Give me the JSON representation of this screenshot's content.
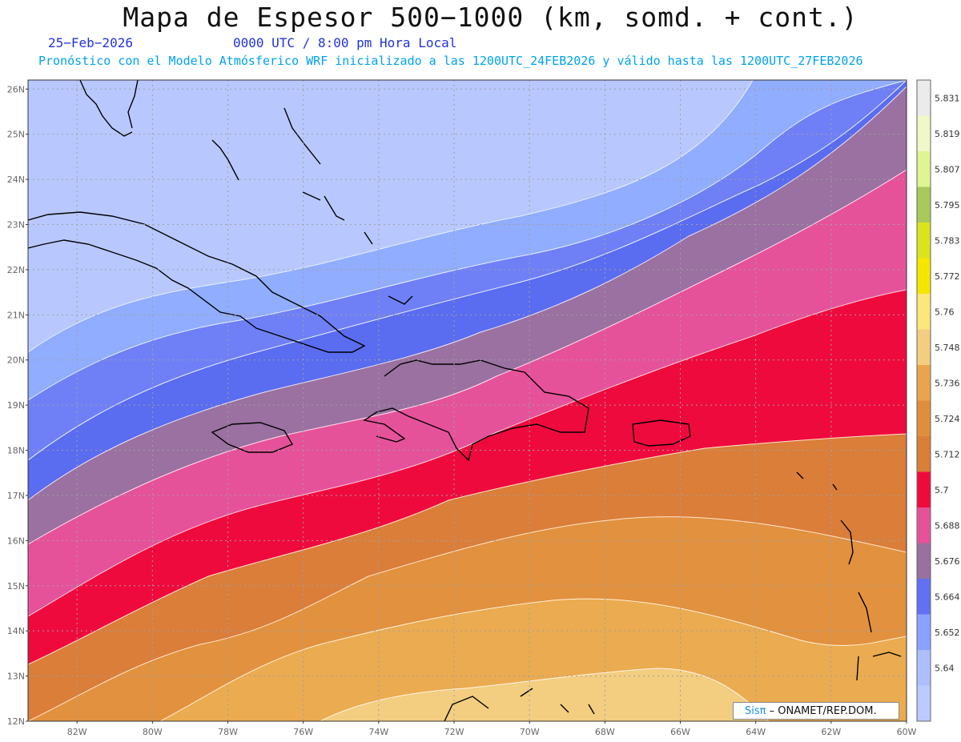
{
  "header": {
    "title": "Mapa de Espesor 500−1000 (km, somd. + cont.)",
    "date": "25−Feb−2026",
    "time": "0000 UTC / 8:00 pm Hora Local",
    "forecast": "Pronóstico con el Modelo Atmósferico WRF inicializado a las 1200UTC_24FEB2026 y válido hasta las  1200UTC_27FEB2026"
  },
  "map": {
    "lat_labels": [
      "26N",
      "25N",
      "24N",
      "23N",
      "22N",
      "21N",
      "20N",
      "19N",
      "18N",
      "17N",
      "16N",
      "15N",
      "14N",
      "13N",
      "12N"
    ],
    "lon_labels": [
      "82W",
      "80W",
      "78W",
      "76W",
      "74W",
      "72W",
      "70W",
      "68W",
      "66W",
      "64W",
      "62W",
      "60W"
    ],
    "gridlines": true,
    "projection": "lat-lon",
    "domain": {
      "lon_min": -83.3,
      "lon_max": -60,
      "lat_min": 12,
      "lat_max": 26.2
    }
  },
  "colorbar": {
    "labels": [
      "5.831",
      "5.819",
      "5.807",
      "5.795",
      "5.783",
      "5.772",
      "5.76",
      "5.748",
      "5.736",
      "5.724",
      "5.712",
      "5.7",
      "5.688",
      "5.676",
      "5.664",
      "5.652",
      "5.64"
    ],
    "colors": [
      "#ebebeb",
      "#f0f7c8",
      "#def590",
      "#a9c95c",
      "#dbe31e",
      "#f5e600",
      "#fbe77b",
      "#f3cd80",
      "#eaa54c",
      "#df8f3c",
      "#d97f38",
      "#ef0a3e",
      "#e6529a",
      "#99709e",
      "#6171f2",
      "#8aa2ff",
      "#adbffe",
      "#bccbff"
    ]
  },
  "credit": {
    "sis": "Sisπ",
    "org": " – ONAMET/REP.DOM."
  }
}
